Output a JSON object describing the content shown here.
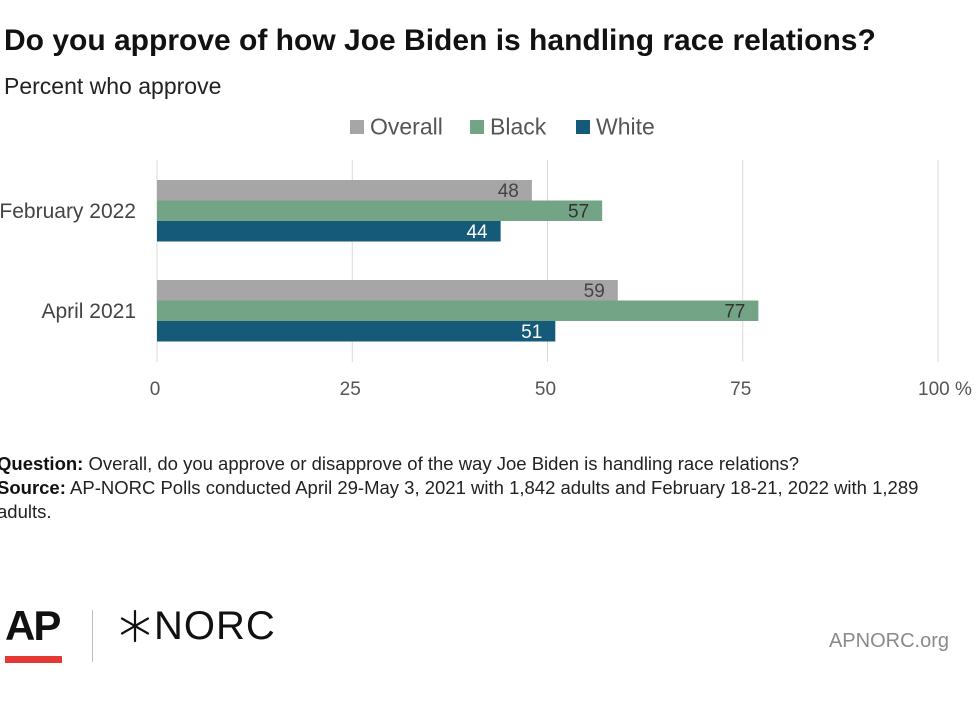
{
  "header": {
    "title": "Do you approve of how Joe Biden is handling race relations?",
    "subtitle": "Percent who approve"
  },
  "colors": {
    "overall": "#a6a6a6",
    "black": "#72a485",
    "white": "#165a7a",
    "grid": "#d9d9d9",
    "accent_red": "#e53935"
  },
  "chart_data": {
    "type": "bar",
    "orientation": "horizontal",
    "categories": [
      "February 2022",
      "April 2021"
    ],
    "series": [
      {
        "name": "Overall",
        "values": [
          48,
          59
        ]
      },
      {
        "name": "Black",
        "values": [
          57,
          77
        ]
      },
      {
        "name": "White",
        "values": [
          44,
          51
        ]
      }
    ],
    "xlim": [
      0,
      100
    ],
    "xticks": [
      0,
      25,
      50,
      75,
      100
    ],
    "xtick_labels": [
      "0",
      "25",
      "50",
      "75",
      "100 %"
    ],
    "grid": true,
    "legend_position": "top"
  },
  "notes": {
    "question_label": "Question:",
    "question_text": " Overall, do you approve or disapprove of the way Joe Biden is handling race relations?",
    "source_label": "Source:",
    "source_text": "  AP-NORC Polls conducted April 29-May 3, 2021 with 1,842 adults and February 18-21, 2022 with 1,289 adults."
  },
  "footer": {
    "ap_logo_text": "AP",
    "norc_logo_text": "NORC",
    "website": "APNORC.org"
  }
}
